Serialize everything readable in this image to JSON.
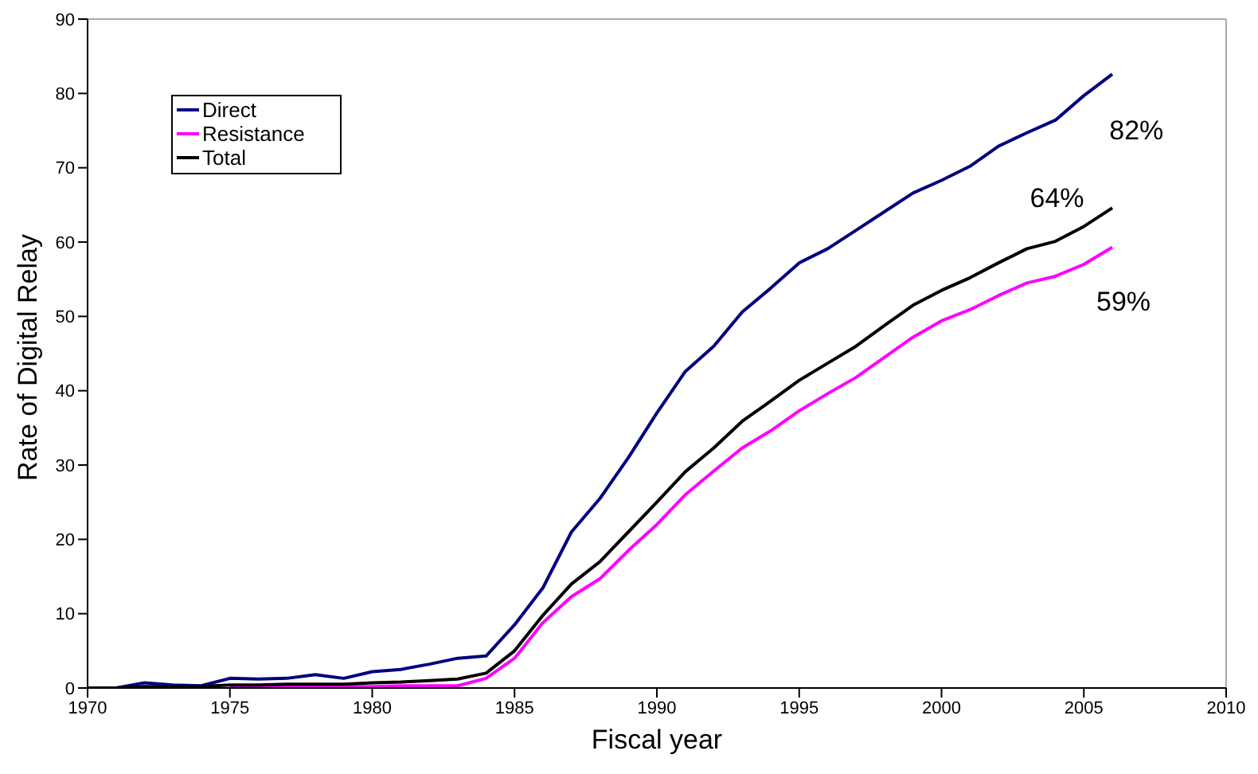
{
  "chart_data": {
    "type": "line",
    "xlabel": "Fiscal year",
    "ylabel": "Rate of Digital Relay",
    "x": [
      1970,
      1971,
      1972,
      1973,
      1974,
      1975,
      1976,
      1977,
      1978,
      1979,
      1980,
      1981,
      1982,
      1983,
      1984,
      1985,
      1986,
      1987,
      1988,
      1989,
      1990,
      1991,
      1992,
      1993,
      1994,
      1995,
      1996,
      1997,
      1998,
      1999,
      2000,
      2001,
      2002,
      2003,
      2004,
      2005,
      2006
    ],
    "series": [
      {
        "name": "Direct",
        "color": "#000080",
        "values": [
          0,
          0,
          0.7,
          0.4,
          0.3,
          1.3,
          1.2,
          1.3,
          1.8,
          1.3,
          2.2,
          2.5,
          3.2,
          4.0,
          4.3,
          8.5,
          13.5,
          21,
          25.5,
          31,
          37,
          42.6,
          46,
          50.6,
          53.8,
          57.2,
          59.1,
          61.6,
          64.1,
          66.6,
          68.3,
          70.2,
          72.9,
          74.7,
          76.4,
          79.7,
          82.6
        ]
      },
      {
        "name": "Resistance",
        "color": "#ff00ff",
        "values": [
          null,
          null,
          null,
          null,
          null,
          0.2,
          0.2,
          0.2,
          0.2,
          0.2,
          0.2,
          0.3,
          0.3,
          0.3,
          1.3,
          4,
          8.8,
          12.3,
          14.7,
          18.5,
          22,
          26,
          29.2,
          32.3,
          34.6,
          37.3,
          39.6,
          41.8,
          44.5,
          47.2,
          49.4,
          50.9,
          52.8,
          54.5,
          55.4,
          57,
          59.3
        ]
      },
      {
        "name": "Total",
        "color": "#000000",
        "values": [
          0,
          0,
          0.2,
          0.2,
          0.2,
          0.4,
          0.4,
          0.5,
          0.5,
          0.5,
          0.7,
          0.8,
          1.0,
          1.2,
          2.0,
          5,
          9.8,
          14,
          17,
          21,
          25,
          29.1,
          32.3,
          35.9,
          38.6,
          41.4,
          43.7,
          46,
          48.8,
          51.5,
          53.5,
          55.2,
          57.2,
          59.1,
          60.1,
          62.1,
          64.6
        ]
      }
    ],
    "xlim": [
      1970,
      2010
    ],
    "xticks": [
      1970,
      1975,
      1980,
      1985,
      1990,
      1995,
      2000,
      2005,
      2010
    ],
    "ylim": [
      0,
      90
    ],
    "yticks": [
      0,
      10,
      20,
      30,
      40,
      50,
      60,
      70,
      80,
      90
    ],
    "grid": false,
    "legend": "top left",
    "marker": "none",
    "line_style": "solid",
    "annotations": [
      {
        "text": "82%",
        "x": 2005,
        "y": 79.7
      },
      {
        "text": "64%",
        "x": 2004,
        "y": 60.1
      },
      {
        "text": "59%",
        "x": 2006,
        "y": 59.3
      }
    ]
  }
}
